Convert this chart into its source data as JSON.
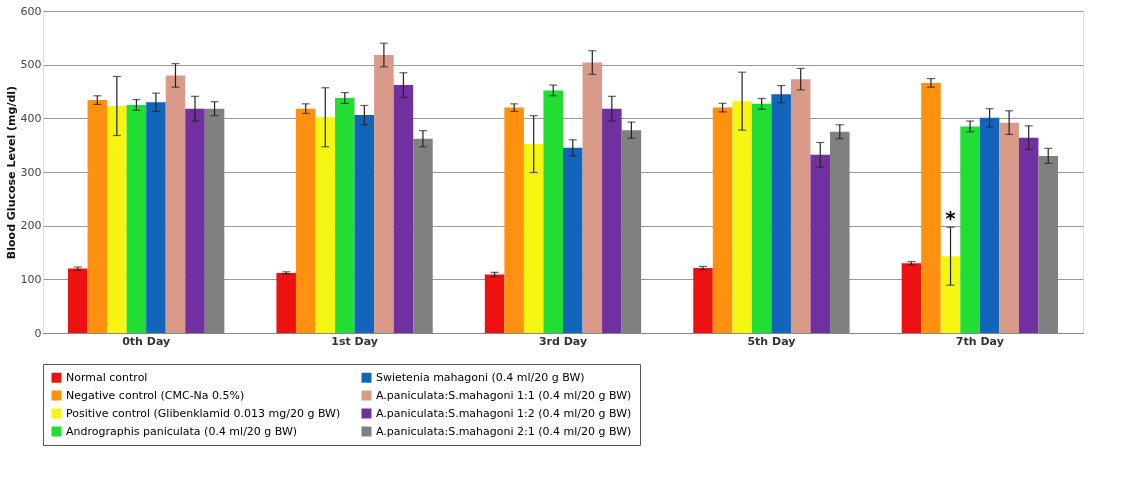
{
  "chart_data": {
    "type": "bar",
    "ylabel": "Blood Glucose Level (mg/dl)",
    "categories": [
      "0th Day",
      "1st Day",
      "3rd Day",
      "5th Day",
      "7th Day"
    ],
    "ylim": [
      0,
      600
    ],
    "yticks": [
      0,
      100,
      200,
      300,
      400,
      500,
      600
    ],
    "grid": "y",
    "legend": "bottom",
    "series": [
      {
        "name": "Normal control",
        "color": "#ee1111",
        "values": [
          120,
          112,
          109,
          121,
          130
        ],
        "errors": [
          3,
          2,
          4,
          3,
          3
        ]
      },
      {
        "name": "Negative control (CMC-Na 0.5%)",
        "color": "#ff9010",
        "values": [
          434,
          418,
          420,
          420,
          466
        ],
        "errors": [
          8,
          9,
          7,
          8,
          8
        ]
      },
      {
        "name": "Positive control (Glibenklamid 0.013 mg/20 g BW)",
        "color": "#f5f511",
        "values": [
          423,
          402,
          352,
          432,
          143
        ],
        "errors": [
          55,
          55,
          53,
          54,
          54
        ]
      },
      {
        "name": "Andrographis paniculata (0.4 ml/20 g BW)",
        "color": "#22dd33",
        "values": [
          425,
          438,
          452,
          427,
          385
        ],
        "errors": [
          10,
          10,
          10,
          10,
          10
        ]
      },
      {
        "name": "Swietenia mahagoni (0.4 ml/20 g BW)",
        "color": "#1166bb",
        "values": [
          430,
          406,
          345,
          445,
          401
        ],
        "errors": [
          17,
          18,
          15,
          16,
          17
        ]
      },
      {
        "name": "A.paniculata:S.mahagoni 1:1 (0.4 ml/20 g BW)",
        "color": "#d99a8a",
        "values": [
          480,
          518,
          504,
          473,
          392
        ],
        "errors": [
          22,
          22,
          22,
          20,
          22
        ]
      },
      {
        "name": "A.paniculata:S.mahagoni 1:2 (0.4 ml/20 g BW)",
        "color": "#7030a0",
        "values": [
          418,
          462,
          418,
          332,
          364
        ],
        "errors": [
          23,
          23,
          23,
          23,
          22
        ]
      },
      {
        "name": "A.paniculata:S.mahagoni 2:1 (0.4 ml/20 g BW)",
        "color": "#808080",
        "values": [
          418,
          362,
          378,
          375,
          330
        ],
        "errors": [
          13,
          15,
          15,
          13,
          14
        ]
      }
    ],
    "annotations": [
      {
        "text": "*",
        "x": "7th Day",
        "y": 212
      }
    ]
  }
}
